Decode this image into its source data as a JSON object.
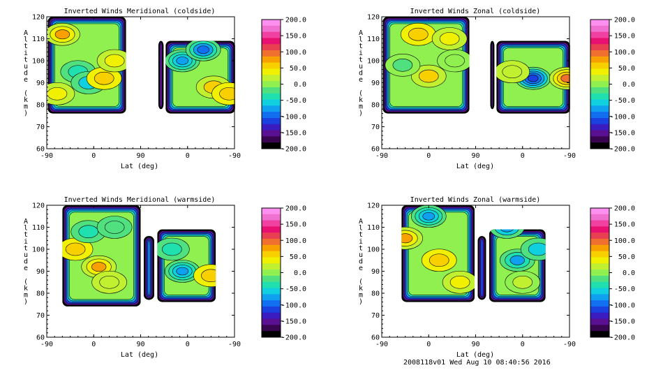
{
  "footer": "2008118v01 Wed Aug 10 08:40:56 2016",
  "colorbar": {
    "labels": [
      "200.0",
      "150.0",
      "100.0",
      "50.0",
      "0.0",
      "-50.0",
      "-100.0",
      "-150.0",
      "-200.0"
    ],
    "colors": [
      "#000000",
      "#3a0550",
      "#5a1090",
      "#3a1cc0",
      "#1a40e0",
      "#1270f0",
      "#10a0f0",
      "#10d0e0",
      "#20e0b0",
      "#50e080",
      "#90f050",
      "#c0f030",
      "#f0f000",
      "#f8d000",
      "#f8a000",
      "#f07030",
      "#e84050",
      "#e81070",
      "#f040a0",
      "#f070d0",
      "#ff90f0"
    ]
  },
  "chart_data": [
    {
      "type": "heatmap",
      "title": "Inverted Winds Meridional (coldside)",
      "xlabel": "Lat (deg)",
      "ylabel": "Altitude (km)",
      "xticks": [
        "-90",
        "0",
        "90",
        "0",
        "-90"
      ],
      "yticks": [
        "60",
        "70",
        "80",
        "90",
        "100",
        "110",
        "120"
      ],
      "ylim": [
        60,
        120
      ],
      "bands": [
        {
          "x0": -88,
          "x1": 62,
          "zmin": 76,
          "zmax": 120
        },
        {
          "x0": 124,
          "x1": 134,
          "zmin": 78,
          "zmax": 109
        },
        {
          "x0": 138,
          "x1": 271,
          "zmin": 76,
          "zmax": 109
        }
      ],
      "blobs": [
        {
          "x": -60,
          "z": 112,
          "v": 70
        },
        {
          "x": -30,
          "z": 95,
          "v": -40
        },
        {
          "x": -10,
          "z": 90,
          "v": -60
        },
        {
          "x": 20,
          "z": 92,
          "v": 60
        },
        {
          "x": 40,
          "z": 100,
          "v": 40
        },
        {
          "x": -70,
          "z": 85,
          "v": 30
        },
        {
          "x": 170,
          "z": 100,
          "v": -90
        },
        {
          "x": 230,
          "z": 88,
          "v": 50
        },
        {
          "x": 210,
          "z": 105,
          "v": -100
        },
        {
          "x": 260,
          "z": 85,
          "v": 60
        }
      ]
    },
    {
      "type": "heatmap",
      "title": "Inverted Winds Zonal (coldside)",
      "xlabel": "Lat (deg)",
      "ylabel": "Altitude (km)",
      "xticks": [
        "-90",
        "0",
        "90",
        "0",
        "-90"
      ],
      "yticks": [
        "60",
        "70",
        "80",
        "90",
        "100",
        "110",
        "120"
      ],
      "ylim": [
        60,
        120
      ],
      "bands": [
        {
          "x0": -88,
          "x1": 78,
          "zmin": 76,
          "zmax": 120
        },
        {
          "x0": 118,
          "x1": 126,
          "zmin": 78,
          "zmax": 109
        },
        {
          "x0": 130,
          "x1": 271,
          "zmin": 76,
          "zmax": 109
        }
      ],
      "blobs": [
        {
          "x": -20,
          "z": 112,
          "v": 60
        },
        {
          "x": 0,
          "z": 93,
          "v": 55
        },
        {
          "x": -50,
          "z": 98,
          "v": -20
        },
        {
          "x": 50,
          "z": 100,
          "v": -10
        },
        {
          "x": 40,
          "z": 110,
          "v": 40
        },
        {
          "x": 200,
          "z": 92,
          "v": -130
        },
        {
          "x": 160,
          "z": 95,
          "v": 20
        },
        {
          "x": 265,
          "z": 92,
          "v": 90
        }
      ]
    },
    {
      "type": "heatmap",
      "title": "Inverted Winds Meridional (warmside)",
      "xlabel": "Lat (deg)",
      "ylabel": "Altitude (km)",
      "xticks": [
        "-90",
        "0",
        "90",
        "0",
        "-90"
      ],
      "yticks": [
        "60",
        "70",
        "80",
        "90",
        "100",
        "110",
        "120"
      ],
      "ylim": [
        60,
        120
      ],
      "bands": [
        {
          "x0": -60,
          "x1": 90,
          "zmin": 74,
          "zmax": 120
        },
        {
          "x0": 96,
          "x1": 116,
          "zmin": 77,
          "zmax": 106
        },
        {
          "x0": 122,
          "x1": 234,
          "zmin": 76,
          "zmax": 109
        }
      ],
      "blobs": [
        {
          "x": -35,
          "z": 100,
          "v": 60
        },
        {
          "x": 10,
          "z": 92,
          "v": 70
        },
        {
          "x": -10,
          "z": 108,
          "v": -50
        },
        {
          "x": 40,
          "z": 110,
          "v": -30
        },
        {
          "x": 30,
          "z": 85,
          "v": 20
        },
        {
          "x": 170,
          "z": 90,
          "v": -90
        },
        {
          "x": 225,
          "z": 88,
          "v": 60
        },
        {
          "x": 150,
          "z": 100,
          "v": -40
        }
      ]
    },
    {
      "type": "heatmap",
      "title": "Inverted Winds Zonal (warmside)",
      "xlabel": "Lat (deg)",
      "ylabel": "Altitude (km)",
      "xticks": [
        "-90",
        "0",
        "90",
        "0",
        "-90"
      ],
      "yticks": [
        "60",
        "70",
        "80",
        "90",
        "100",
        "110",
        "120"
      ],
      "ylim": [
        60,
        120
      ],
      "bands": [
        {
          "x0": -52,
          "x1": 88,
          "zmin": 76,
          "zmax": 120
        },
        {
          "x0": 94,
          "x1": 110,
          "zmin": 77,
          "zmax": 106
        },
        {
          "x0": 116,
          "x1": 224,
          "zmin": 76,
          "zmax": 109
        }
      ],
      "blobs": [
        {
          "x": -45,
          "z": 105,
          "v": 70
        },
        {
          "x": 20,
          "z": 95,
          "v": 60
        },
        {
          "x": 0,
          "z": 115,
          "v": -90
        },
        {
          "x": 60,
          "z": 85,
          "v": 40
        },
        {
          "x": 170,
          "z": 95,
          "v": -70
        },
        {
          "x": 180,
          "z": 85,
          "v": 10
        },
        {
          "x": 210,
          "z": 100,
          "v": -60
        },
        {
          "x": 150,
          "z": 110,
          "v": -80
        }
      ]
    }
  ]
}
